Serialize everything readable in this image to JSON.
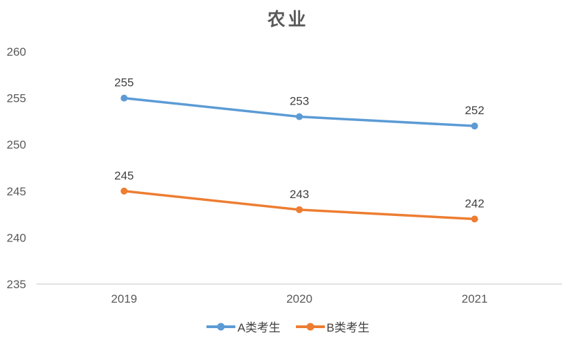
{
  "chart_data": {
    "type": "line",
    "title": "农业",
    "categories": [
      "2019",
      "2020",
      "2021"
    ],
    "series": [
      {
        "name": "A类考生",
        "values": [
          255,
          253,
          252
        ],
        "color": "#5B9BD5"
      },
      {
        "name": "B类考生",
        "values": [
          245,
          243,
          242
        ],
        "color": "#ED7D31"
      }
    ],
    "xlabel": "",
    "ylabel": "",
    "ylim": [
      235,
      260
    ],
    "ytick_step": 5,
    "grid": false,
    "data_labels": true,
    "legend_position": "bottom"
  },
  "colors": {
    "background": "#FFFFFF",
    "axis_line": "#D9D9D9",
    "tick_label": "#595959",
    "data_label": "#404040",
    "title": "#595959"
  }
}
